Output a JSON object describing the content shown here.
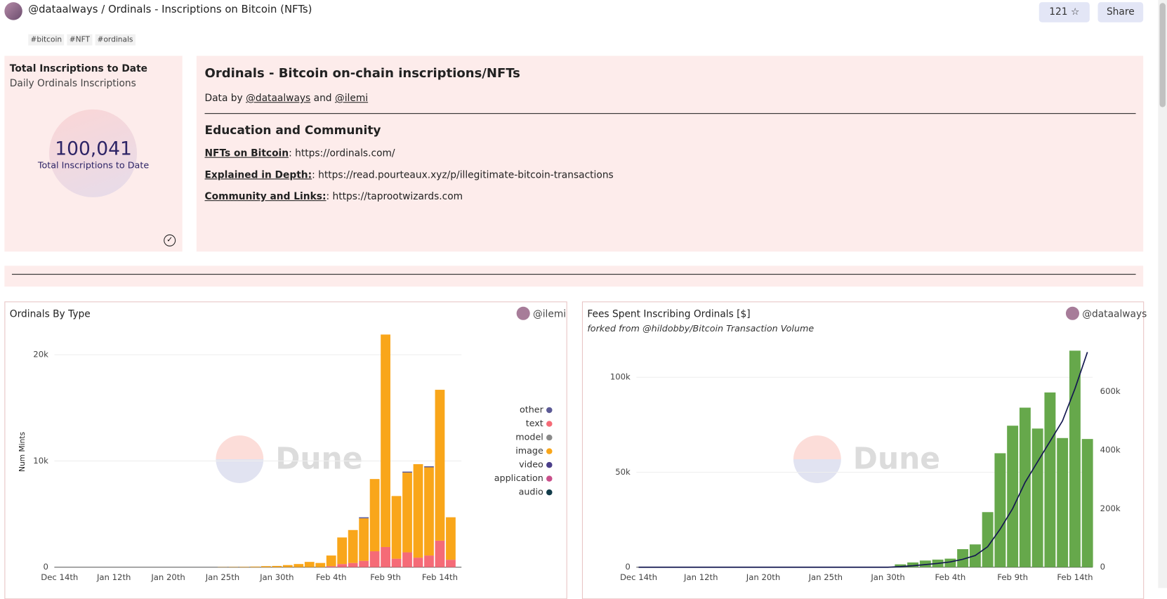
{
  "header": {
    "title": "@dataalways / Ordinals - Inscriptions on Bitcoin (NFTs)",
    "tags": [
      "#bitcoin",
      "#NFT",
      "#ordinals"
    ],
    "stars": "121",
    "share": "Share"
  },
  "counter": {
    "tabs": [
      "Total Inscriptions to Date",
      "Daily Ordinals Inscriptions"
    ],
    "value": "100,041",
    "label": "Total Inscriptions to Date"
  },
  "text_panel": {
    "heading": "Ordinals - Bitcoin on-chain inscriptions/NFTs",
    "credit": {
      "prefix": "Data by",
      "link1": "@dataalways",
      "middle": "and",
      "link2": "@ilemi"
    },
    "subheading": "Education and Community",
    "links": [
      {
        "label": "NFTs on Bitcoin",
        "rest": ": https://ordinals.com/"
      },
      {
        "label": "Explained in Depth:",
        "rest": ": https://read.pourteaux.xyz/p/illegitimate-bitcoin-transactions"
      },
      {
        "label": "Community and Links:",
        "rest": ": https://taprootwizards.com"
      }
    ]
  },
  "chart_data": [
    {
      "type": "stacked_bar",
      "title": "Ordinals By Type",
      "owner": "@ilemi",
      "watermark": "Dune",
      "y_label": "Num Mints",
      "categories": [
        "Dec 14th",
        null,
        null,
        null,
        null,
        "Jan 12th",
        null,
        null,
        null,
        null,
        "Jan 20th",
        null,
        null,
        null,
        null,
        "Jan 25th",
        null,
        null,
        null,
        null,
        "Jan 30th",
        null,
        null,
        null,
        null,
        "Feb 4th",
        null,
        null,
        null,
        null,
        "Feb 9th",
        null,
        null,
        null,
        null,
        "Feb 14th",
        null
      ],
      "ylim": [
        0,
        22000
      ],
      "yticks": [
        0,
        {
          "value": 10000,
          "label": "10k"
        },
        {
          "value": 20000,
          "label": "20k"
        }
      ],
      "grid": true,
      "series": [
        {
          "name": "other",
          "color": "#5c5a96",
          "values": [
            0,
            0,
            0,
            0,
            0,
            0,
            0,
            0,
            0,
            0,
            0,
            0,
            0,
            0,
            0,
            0,
            0,
            0,
            0,
            0,
            0,
            0,
            0,
            0,
            0,
            0,
            0,
            0,
            100,
            0,
            0,
            0,
            100,
            0,
            100,
            0,
            0
          ]
        },
        {
          "name": "text",
          "color": "#f56b77",
          "values": [
            0,
            0,
            0,
            0,
            0,
            0,
            0,
            0,
            0,
            0,
            0,
            0,
            0,
            0,
            0,
            0,
            0,
            0,
            0,
            0,
            0,
            0,
            0,
            0,
            0,
            100,
            300,
            400,
            600,
            1500,
            1900,
            800,
            1400,
            900,
            1100,
            2500,
            700
          ]
        },
        {
          "name": "model",
          "color": "#8a8a8a",
          "values": [
            0,
            0,
            0,
            0,
            0,
            0,
            0,
            0,
            0,
            0,
            0,
            0,
            0,
            0,
            0,
            0,
            0,
            0,
            0,
            0,
            0,
            0,
            0,
            0,
            0,
            0,
            0,
            0,
            0,
            0,
            0,
            0,
            0,
            0,
            0,
            0,
            0
          ]
        },
        {
          "name": "image",
          "color": "#f9a61a",
          "values": [
            0,
            0,
            0,
            0,
            0,
            0,
            0,
            0,
            0,
            0,
            0,
            0,
            0,
            0,
            0,
            20,
            30,
            40,
            60,
            100,
            120,
            200,
            300,
            500,
            400,
            1000,
            2500,
            3100,
            4000,
            6800,
            20000,
            5900,
            7500,
            8800,
            8300,
            14200,
            4000
          ]
        },
        {
          "name": "video",
          "color": "#4b3f8a",
          "values": [
            0,
            0,
            0,
            0,
            0,
            0,
            0,
            0,
            0,
            0,
            0,
            0,
            0,
            0,
            0,
            0,
            0,
            0,
            0,
            0,
            0,
            0,
            0,
            0,
            0,
            0,
            0,
            0,
            0,
            0,
            0,
            0,
            0,
            0,
            0,
            0,
            0
          ]
        },
        {
          "name": "application",
          "color": "#c94f8a",
          "values": [
            0,
            0,
            0,
            0,
            0,
            0,
            0,
            0,
            0,
            0,
            0,
            0,
            0,
            0,
            0,
            0,
            0,
            0,
            0,
            0,
            0,
            0,
            0,
            0,
            0,
            0,
            0,
            0,
            0,
            0,
            0,
            0,
            0,
            0,
            0,
            0,
            0
          ]
        },
        {
          "name": "audio",
          "color": "#123c4a",
          "values": [
            0,
            0,
            0,
            0,
            0,
            0,
            0,
            0,
            0,
            0,
            0,
            0,
            0,
            0,
            0,
            0,
            0,
            0,
            0,
            0,
            0,
            0,
            0,
            0,
            0,
            0,
            0,
            0,
            0,
            0,
            0,
            0,
            0,
            0,
            0,
            0,
            0
          ]
        }
      ],
      "legend": "right"
    },
    {
      "type": "bar_line",
      "title": "Fees Spent Inscribing Ordinals [$]",
      "subtitle": "forked from @hildobby/Bitcoin Transaction Volume",
      "owner": "@dataalways",
      "watermark": "Dune",
      "categories": [
        "Dec 14th",
        null,
        null,
        null,
        null,
        "Jan 12th",
        null,
        null,
        null,
        null,
        "Jan 20th",
        null,
        null,
        null,
        null,
        "Jan 25th",
        null,
        null,
        null,
        null,
        "Jan 30th",
        null,
        null,
        null,
        null,
        "Feb 4th",
        null,
        null,
        null,
        null,
        "Feb 9th",
        null,
        null,
        null,
        null,
        "Feb 14th",
        null
      ],
      "ylim": [
        0,
        116000
      ],
      "yticks": [
        0,
        {
          "value": 50000,
          "label": "50k"
        },
        {
          "value": 100000,
          "label": "100k"
        }
      ],
      "y2lim": [
        0,
        753000
      ],
      "y2ticks": [
        0,
        {
          "value": 200000,
          "label": "200k"
        },
        {
          "value": 400000,
          "label": "400k"
        },
        {
          "value": 600000,
          "label": "600k"
        }
      ],
      "grid": true,
      "series": [
        {
          "type": "bar",
          "color": "#66a84b",
          "values": [
            0,
            0,
            0,
            0,
            0,
            0,
            0,
            0,
            0,
            0,
            0,
            0,
            0,
            0,
            0,
            0,
            0,
            0,
            0,
            0,
            0,
            1500,
            2500,
            3500,
            4000,
            4500,
            9500,
            12000,
            29000,
            60000,
            74500,
            84000,
            73000,
            92000,
            68000,
            114000,
            67500
          ]
        },
        {
          "type": "line",
          "axis": "y2",
          "color": "#141850",
          "values": [
            0,
            0,
            0,
            0,
            0,
            0,
            0,
            0,
            0,
            0,
            0,
            0,
            0,
            0,
            0,
            0,
            0,
            0,
            0,
            0,
            0,
            2000,
            5000,
            9000,
            13000,
            18000,
            27000,
            40000,
            70000,
            130000,
            200000,
            290000,
            360000,
            430000,
            500000,
            610000,
            735000
          ]
        }
      ]
    }
  ]
}
